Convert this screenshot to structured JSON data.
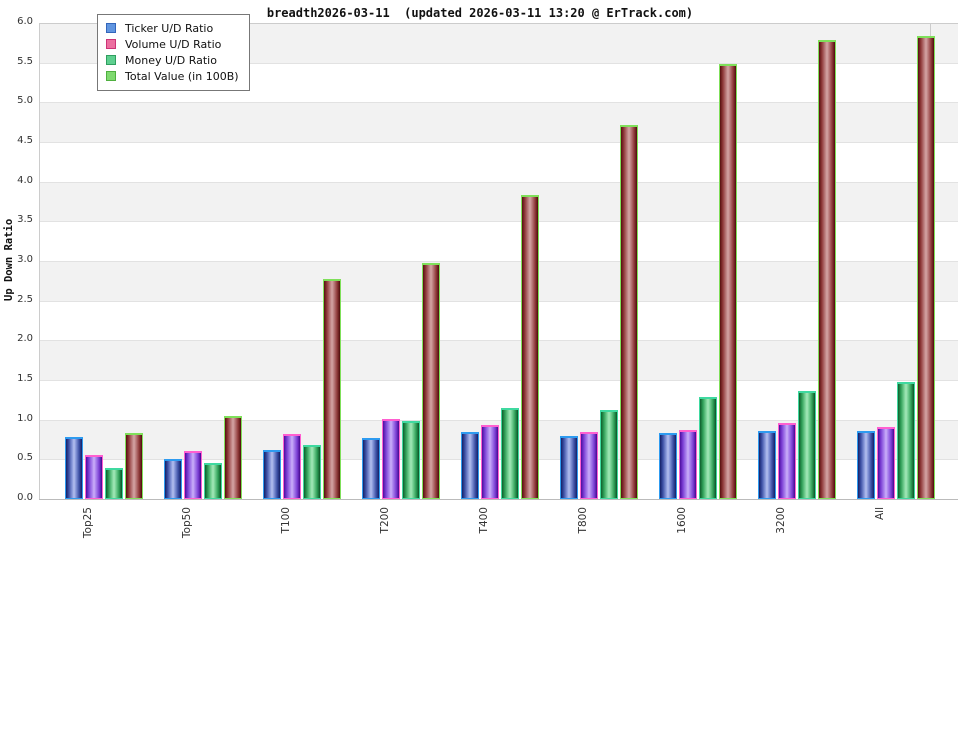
{
  "title": "breadth2026-03-11  (updated 2026-03-11 13:20 @ ErTrack.com)",
  "chart_data": {
    "type": "bar",
    "title": "breadth2026-03-11  (updated 2026-03-11 13:20 @ ErTrack.com)",
    "xlabel": "",
    "ylabel": "Up Down Ratio",
    "ylim": [
      0.0,
      6.0
    ],
    "ytick_step": 0.5,
    "ytick_labels": [
      "0.0",
      "0.5",
      "1.0",
      "1.5",
      "2.0",
      "2.5",
      "3.0",
      "3.5",
      "4.0",
      "4.5",
      "5.0",
      "5.5",
      "6.0"
    ],
    "grid": "horizontal-bands-alternating",
    "band_color": "#f2f2f2",
    "gridline_color": "#e2e2e2",
    "legend_position": "top-left",
    "categories": [
      "Top25",
      "Top50",
      "T100",
      "T200",
      "T400",
      "T800",
      "1600",
      "3200",
      "All"
    ],
    "series": [
      {
        "name": "Ticker U/D Ratio",
        "values": [
          0.78,
          0.51,
          0.62,
          0.77,
          0.84,
          0.8,
          0.83,
          0.86,
          0.86
        ],
        "swatch_fill": "#6095e0",
        "swatch_border": "#3366bb",
        "cap_color": "#2e9bf0",
        "body_gradient": [
          "#141f66",
          "#3d51a5",
          "#8d9ddd",
          "#b4c0ee",
          "#8d9ddd",
          "#3d51a5",
          "#141f66"
        ]
      },
      {
        "name": "Volume U/D Ratio",
        "values": [
          0.55,
          0.61,
          0.82,
          1.01,
          0.93,
          0.84,
          0.87,
          0.96,
          0.91
        ],
        "swatch_fill": "#ec6fa0",
        "swatch_border": "#cc3377",
        "cap_color": "#ff5fd0",
        "body_gradient": [
          "#4c0d9e",
          "#7b3fd4",
          "#b08af0",
          "#cbb0f8",
          "#b08af0",
          "#7b3fd4",
          "#45098f"
        ]
      },
      {
        "name": "Money U/D Ratio",
        "values": [
          0.39,
          0.45,
          0.68,
          0.98,
          1.15,
          1.12,
          1.28,
          1.36,
          1.47
        ],
        "swatch_fill": "#5ecf8f",
        "swatch_border": "#2f9e5f",
        "cap_color": "#3fd9a0",
        "body_gradient": [
          "#0f5e2c",
          "#2f9e57",
          "#7fd69b",
          "#a5e8ba",
          "#7fd69b",
          "#2f9e57",
          "#0c5226"
        ]
      },
      {
        "name": "Total Value (in 100B)",
        "values": [
          0.83,
          1.05,
          2.77,
          2.98,
          3.83,
          4.72,
          5.48,
          5.79,
          5.84
        ],
        "swatch_fill": "#7fd96f",
        "swatch_border": "#4faf3f",
        "cap_color": "#7fe05a",
        "body_gradient": [
          "#570e0e",
          "#8f3a3a",
          "#c08585",
          "#d4a5a5",
          "#c08585",
          "#8f3a3a",
          "#4e0b0b"
        ]
      }
    ]
  }
}
